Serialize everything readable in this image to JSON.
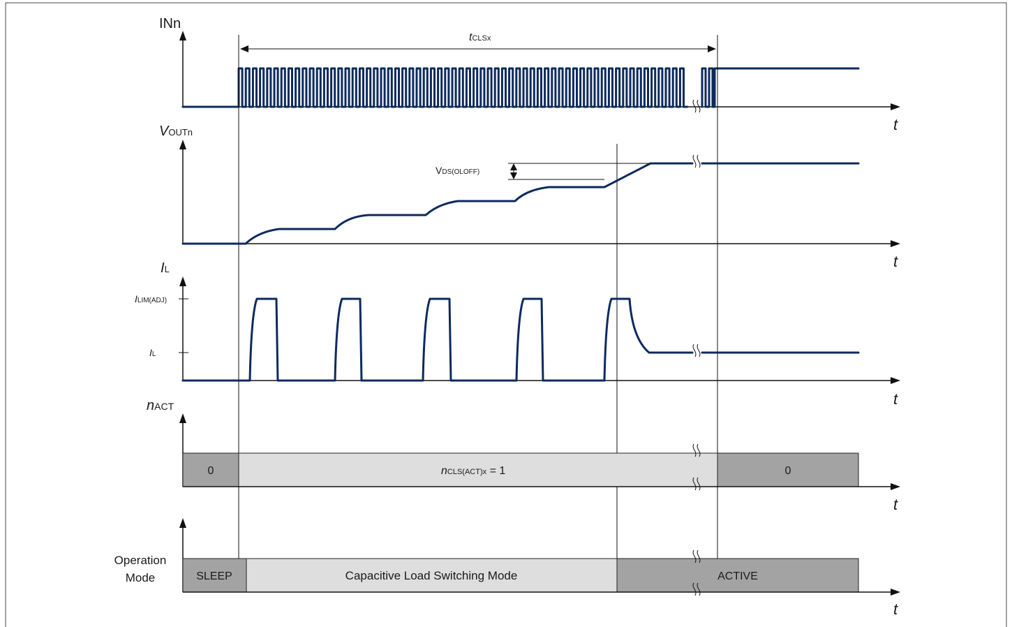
{
  "labels": {
    "inn": "INn",
    "vout_v": "V",
    "vout_sub": "OUTn",
    "il_i": "I",
    "il_sub": "L",
    "nact_n": "n",
    "nact_sub": "ACT",
    "op_line1": "Operation",
    "op_line2": "Mode",
    "tcls_t": "t",
    "tcls_sub": "CLSx",
    "vds_v": "V",
    "vds_sub": "DS(OLOFF)",
    "ilim_i": "I",
    "ilim_sub": "LIM(ADJ)",
    "il_tick_i": "I",
    "il_tick_sub": "L",
    "time_axis": "t"
  },
  "nact_bar": {
    "left": "0",
    "mid_n": "n",
    "mid_sub": "CLS(ACT)x",
    "mid_rest": " = 1",
    "right": "0"
  },
  "mode_bar": {
    "sleep": "SLEEP",
    "cls": "Capacitive Load Switching Mode",
    "active": "ACTIVE"
  },
  "colors": {
    "signal": "#0c2a5e",
    "bar_dark": "#a3a3a3",
    "bar_light": "#dedede"
  }
}
